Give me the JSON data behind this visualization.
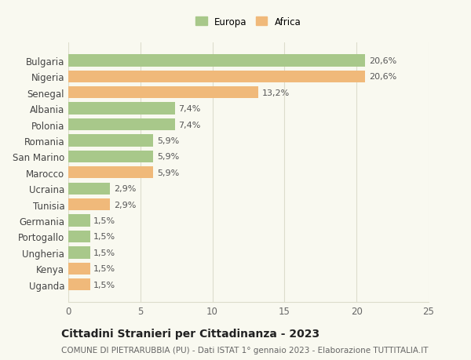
{
  "categories": [
    "Bulgaria",
    "Nigeria",
    "Senegal",
    "Albania",
    "Polonia",
    "Romania",
    "San Marino",
    "Marocco",
    "Ucraina",
    "Tunisia",
    "Germania",
    "Portogallo",
    "Ungheria",
    "Kenya",
    "Uganda"
  ],
  "values": [
    20.6,
    20.6,
    13.2,
    7.4,
    7.4,
    5.9,
    5.9,
    5.9,
    2.9,
    2.9,
    1.5,
    1.5,
    1.5,
    1.5,
    1.5
  ],
  "labels": [
    "20,6%",
    "20,6%",
    "13,2%",
    "7,4%",
    "7,4%",
    "5,9%",
    "5,9%",
    "5,9%",
    "2,9%",
    "2,9%",
    "1,5%",
    "1,5%",
    "1,5%",
    "1,5%",
    "1,5%"
  ],
  "continent": [
    "Europa",
    "Africa",
    "Africa",
    "Europa",
    "Europa",
    "Europa",
    "Europa",
    "Africa",
    "Europa",
    "Africa",
    "Europa",
    "Europa",
    "Europa",
    "Africa",
    "Africa"
  ],
  "color_europa": "#a8c88a",
  "color_africa": "#f0b97a",
  "background_color": "#f9f9f0",
  "title": "Cittadini Stranieri per Cittadinanza - 2023",
  "subtitle": "COMUNE DI PIETRARUBBIA (PU) - Dati ISTAT 1° gennaio 2023 - Elaborazione TUTTITALIA.IT",
  "legend_europa": "Europa",
  "legend_africa": "Africa",
  "xlim": [
    0,
    25
  ],
  "xticks": [
    0,
    5,
    10,
    15,
    20,
    25
  ],
  "bar_height": 0.75,
  "grid_color": "#ddddcc",
  "tick_label_fontsize": 8.5,
  "title_fontsize": 10,
  "subtitle_fontsize": 7.5,
  "label_fontsize": 8.0
}
